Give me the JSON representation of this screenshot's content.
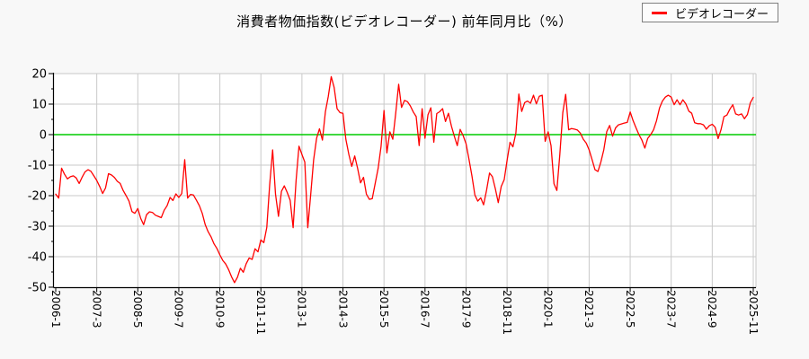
{
  "title": "消費者物価指数(ビデオレコーダー) 前年同月比（%）",
  "legend": {
    "label": "ビデオレコーダー",
    "marker_color": "#ff0000"
  },
  "chart_data": {
    "type": "line",
    "title": "消費者物価指数(ビデオレコーダー) 前年同月比（%）",
    "ylabel": "前年同月比（%）",
    "x_start": "2006-1",
    "x_end": "2025-11",
    "x_tick_interval_months": 14,
    "x_tick_labels": [
      "2006-1",
      "2007-3",
      "2008-5",
      "2009-7",
      "2010-9",
      "2011-11",
      "2013-1",
      "2014-3",
      "2015-5",
      "2016-7",
      "2017-9",
      "2018-11",
      "2020-1",
      "2021-3",
      "2022-5",
      "2023-7",
      "2024-9",
      "2025-11"
    ],
    "y_ticks": [
      20,
      10,
      0,
      -10,
      -20,
      -30,
      -40,
      -50
    ],
    "ylim": [
      -50,
      20
    ],
    "grid": true,
    "zero_line_color": "#00cc00",
    "line_color": "#ff0000",
    "grid_color": "#c9c9c9",
    "axis_color": "#000000",
    "plot_bg": "#ffffff",
    "series": [
      {
        "name": "ビデオレコーダー",
        "start_year": 2006,
        "start_month": 1,
        "values": [
          -19.5,
          -20.8,
          -11.0,
          -13.0,
          -14.5,
          -13.8,
          -13.5,
          -14.2,
          -16.0,
          -14.0,
          -12.2,
          -11.5,
          -12.0,
          -13.5,
          -15.0,
          -17.0,
          -19.3,
          -17.5,
          -12.8,
          -13.2,
          -14.0,
          -15.3,
          -16.0,
          -18.3,
          -20.0,
          -21.8,
          -25.2,
          -25.8,
          -24.2,
          -27.5,
          -29.5,
          -26.2,
          -25.3,
          -25.5,
          -26.4,
          -26.8,
          -27.2,
          -24.8,
          -23.3,
          -20.6,
          -21.6,
          -19.4,
          -20.6,
          -19.3,
          -8.2,
          -20.8,
          -19.6,
          -19.8,
          -21.5,
          -23.3,
          -25.8,
          -29.5,
          -31.8,
          -33.5,
          -35.8,
          -37.3,
          -39.4,
          -41.2,
          -42.4,
          -44.3,
          -46.6,
          -48.5,
          -46.7,
          -43.8,
          -45.1,
          -42.3,
          -40.4,
          -40.9,
          -37.4,
          -38.4,
          -34.5,
          -35.4,
          -30.4,
          -16.5,
          -5.0,
          -19.5,
          -26.8,
          -18.6,
          -16.8,
          -19.0,
          -21.5,
          -30.5,
          -15.0,
          -3.8,
          -6.5,
          -9.0,
          -30.5,
          -19.5,
          -8.3,
          -1.2,
          1.9,
          -1.8,
          7.5,
          12.5,
          19.0,
          15.5,
          8.5,
          7.2,
          7.0,
          -1.6,
          -6.5,
          -10.4,
          -7.0,
          -11.0,
          -15.8,
          -14.0,
          -19.5,
          -21.2,
          -21.0,
          -16.0,
          -11.0,
          -3.9,
          7.9,
          -6.0,
          0.9,
          -1.5,
          6.9,
          16.5,
          8.9,
          11.2,
          10.8,
          9.4,
          7.4,
          5.9,
          -3.6,
          8.5,
          -1.2,
          6.5,
          8.8,
          -2.5,
          6.9,
          7.5,
          8.5,
          4.3,
          7.0,
          2.8,
          -0.5,
          -3.6,
          1.7,
          -0.3,
          -3.0,
          -8.0,
          -13.5,
          -19.8,
          -21.8,
          -20.7,
          -23.0,
          -18.2,
          -12.6,
          -13.8,
          -17.8,
          -22.3,
          -17.0,
          -14.8,
          -8.5,
          -2.5,
          -4.0,
          0.5,
          13.3,
          7.6,
          10.5,
          11.0,
          10.3,
          12.9,
          10.1,
          12.6,
          12.9,
          -2.2,
          0.9,
          -3.6,
          -16.1,
          -18.3,
          -6.5,
          7.2,
          13.2,
          1.6,
          2.0,
          1.8,
          1.5,
          0.5,
          -1.5,
          -2.8,
          -5.0,
          -8.2,
          -11.5,
          -12.1,
          -8.9,
          -5.0,
          1.0,
          3.0,
          -0.5,
          2.2,
          3.2,
          3.5,
          3.8,
          4.0,
          7.4,
          4.6,
          2.2,
          0.0,
          -1.8,
          -4.4,
          -1.2,
          0.0,
          1.6,
          4.6,
          8.7,
          11.0,
          12.3,
          12.9,
          12.3,
          9.8,
          11.4,
          9.8,
          11.4,
          10.1,
          7.7,
          7.0,
          3.9,
          3.6,
          3.6,
          3.2,
          1.8,
          2.9,
          3.4,
          2.4,
          -1.3,
          1.6,
          5.9,
          6.4,
          8.3,
          9.8,
          6.8,
          6.4,
          6.8,
          5.2,
          6.6,
          10.4,
          12.2
        ]
      }
    ]
  }
}
